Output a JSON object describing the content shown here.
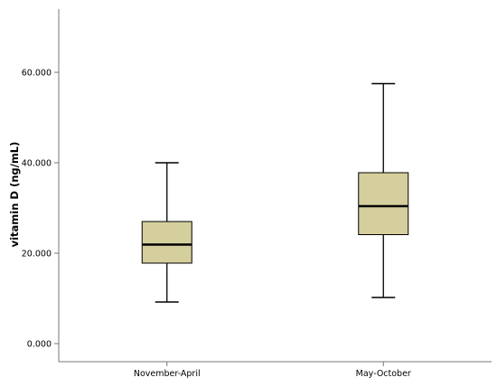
{
  "chart_data": {
    "type": "box",
    "xlabel": "",
    "ylabel": "vitamin D (ng/mL)",
    "ylim": [
      -4,
      74
    ],
    "yticks": [
      0,
      20,
      40,
      60
    ],
    "ytick_labels": [
      "0.000",
      "20.000",
      "40.000",
      "60.000"
    ],
    "categories": [
      "November-April",
      "May-October"
    ],
    "boxes": [
      {
        "category": "November-April",
        "min": 9.2,
        "q1": 17.8,
        "median": 21.9,
        "q3": 27.0,
        "max": 40.0
      },
      {
        "category": "May-October",
        "min": 10.2,
        "q1": 24.1,
        "median": 30.4,
        "q3": 37.8,
        "max": 57.5
      }
    ],
    "grid": false,
    "legend": "none",
    "colors": {
      "box_fill": "#d5cf9d",
      "line": "#000000",
      "axis": "#777777"
    }
  }
}
